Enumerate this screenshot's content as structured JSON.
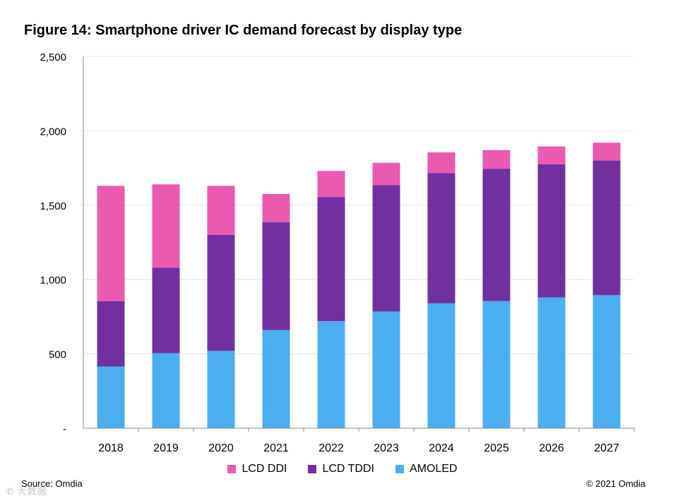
{
  "figure": {
    "title": "Figure 14: Smartphone driver IC demand forecast by display type",
    "source": "Source: Omdia",
    "copyright": "© 2021 Omdia"
  },
  "watermark": {
    "text": "大数据",
    "icon": "chat-bubble-icon"
  },
  "colors": {
    "lcd_ddi": "#EA5AB1",
    "lcd_tddi": "#7030A0",
    "amoled": "#4BAEF0",
    "gridline": "#e6e6e6",
    "axis": "#888888"
  },
  "chart_data": {
    "type": "bar",
    "stacked": true,
    "title": "Figure 14: Smartphone driver IC demand forecast by display type",
    "xlabel": "",
    "ylabel": "",
    "ylim": [
      0,
      2500
    ],
    "yticks": [
      0,
      500,
      1000,
      1500,
      2000,
      2500
    ],
    "ytick_labels": [
      "-",
      "500",
      "1,000",
      "1,500",
      "2,000",
      "2,500"
    ],
    "grid": true,
    "legend_position": "bottom",
    "categories": [
      "2018",
      "2019",
      "2020",
      "2021",
      "2022",
      "2023",
      "2024",
      "2025",
      "2026",
      "2027"
    ],
    "series": [
      {
        "name": "AMOLED",
        "color_key": "amoled",
        "values": [
          415,
          505,
          520,
          660,
          720,
          785,
          840,
          855,
          880,
          895
        ]
      },
      {
        "name": "LCD TDDI",
        "color_key": "lcd_tddi",
        "values": [
          440,
          575,
          780,
          725,
          835,
          850,
          875,
          890,
          895,
          905
        ]
      },
      {
        "name": "LCD DDI",
        "color_key": "lcd_ddi",
        "values": [
          775,
          560,
          330,
          190,
          175,
          150,
          140,
          125,
          120,
          120
        ]
      }
    ],
    "legend_order": [
      "LCD DDI",
      "LCD TDDI",
      "AMOLED"
    ]
  }
}
